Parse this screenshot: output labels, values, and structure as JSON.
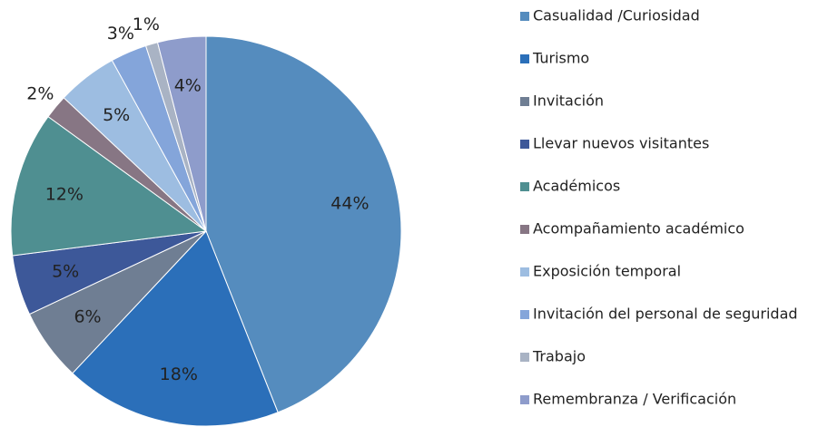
{
  "chart_data": {
    "type": "pie",
    "categories": [
      "Casualidad /Curiosidad",
      "Turismo",
      "Invitación",
      "Llevar nuevos visitantes",
      "Académicos",
      "Acompañamiento académico",
      "Exposición temporal",
      "Invitación del personal de seguridad",
      "Trabajo",
      "Remembranza / Verificación"
    ],
    "values": [
      44,
      18,
      6,
      5,
      12,
      2,
      5,
      3,
      1,
      4
    ],
    "value_labels": [
      "44%",
      "18%",
      "6%",
      "5%",
      "12%",
      "2%",
      "5%",
      "3%",
      "1%",
      "4%"
    ],
    "colors": [
      "#558cbe",
      "#2b6fb9",
      "#6f7e93",
      "#3d5899",
      "#4f8f91",
      "#877684",
      "#9dbde1",
      "#84a5da",
      "#a9b3c4",
      "#8e9ccb"
    ],
    "legend": "right"
  }
}
